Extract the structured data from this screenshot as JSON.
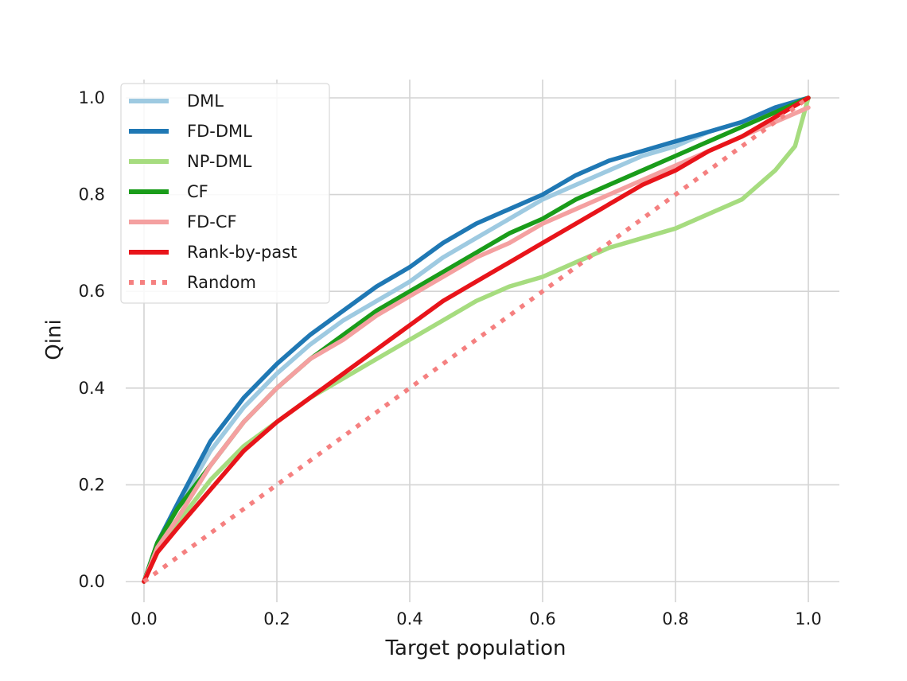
{
  "chart_data": {
    "type": "line",
    "title": "",
    "xlabel": "Target population",
    "ylabel": "Qini",
    "xlim": [
      0.0,
      1.0
    ],
    "ylim": [
      0.0,
      1.0
    ],
    "xticks": [
      "0.0",
      "0.2",
      "0.4",
      "0.6",
      "0.8",
      "1.0"
    ],
    "yticks": [
      "0.0",
      "0.2",
      "0.4",
      "0.6",
      "0.8",
      "1.0"
    ],
    "grid": true,
    "legend_position": "top-left",
    "series": [
      {
        "name": "DML",
        "color": "#9ecae1",
        "style": "solid",
        "x": [
          0,
          0.02,
          0.05,
          0.1,
          0.15,
          0.2,
          0.25,
          0.3,
          0.35,
          0.4,
          0.45,
          0.5,
          0.55,
          0.6,
          0.65,
          0.7,
          0.75,
          0.8,
          0.85,
          0.9,
          0.95,
          1.0
        ],
        "y": [
          0,
          0.08,
          0.15,
          0.27,
          0.36,
          0.43,
          0.49,
          0.54,
          0.58,
          0.62,
          0.67,
          0.71,
          0.75,
          0.79,
          0.82,
          0.85,
          0.88,
          0.9,
          0.93,
          0.95,
          0.98,
          1.0
        ]
      },
      {
        "name": "FD-DML",
        "color": "#1f78b4",
        "style": "solid",
        "x": [
          0,
          0.02,
          0.05,
          0.1,
          0.15,
          0.2,
          0.25,
          0.3,
          0.35,
          0.4,
          0.45,
          0.5,
          0.55,
          0.6,
          0.65,
          0.7,
          0.75,
          0.8,
          0.85,
          0.9,
          0.95,
          1.0
        ],
        "y": [
          0,
          0.08,
          0.16,
          0.29,
          0.38,
          0.45,
          0.51,
          0.56,
          0.61,
          0.65,
          0.7,
          0.74,
          0.77,
          0.8,
          0.84,
          0.87,
          0.89,
          0.91,
          0.93,
          0.95,
          0.98,
          1.0
        ]
      },
      {
        "name": "NP-DML",
        "color": "#a6dc7f",
        "style": "solid",
        "x": [
          0,
          0.02,
          0.05,
          0.1,
          0.15,
          0.2,
          0.25,
          0.3,
          0.35,
          0.4,
          0.45,
          0.5,
          0.55,
          0.6,
          0.65,
          0.7,
          0.75,
          0.8,
          0.85,
          0.9,
          0.95,
          0.98,
          1.0
        ],
        "y": [
          0,
          0.06,
          0.12,
          0.21,
          0.28,
          0.33,
          0.38,
          0.42,
          0.46,
          0.5,
          0.54,
          0.58,
          0.61,
          0.63,
          0.66,
          0.69,
          0.71,
          0.73,
          0.76,
          0.79,
          0.85,
          0.9,
          1.0
        ]
      },
      {
        "name": "CF",
        "color": "#1a9c1a",
        "style": "solid",
        "x": [
          0,
          0.02,
          0.05,
          0.1,
          0.15,
          0.2,
          0.25,
          0.3,
          0.35,
          0.4,
          0.45,
          0.5,
          0.55,
          0.6,
          0.65,
          0.7,
          0.75,
          0.8,
          0.85,
          0.9,
          0.95,
          1.0
        ],
        "y": [
          0,
          0.08,
          0.15,
          0.24,
          0.33,
          0.4,
          0.46,
          0.51,
          0.56,
          0.6,
          0.64,
          0.68,
          0.72,
          0.75,
          0.79,
          0.82,
          0.85,
          0.88,
          0.91,
          0.94,
          0.97,
          1.0
        ]
      },
      {
        "name": "FD-CF",
        "color": "#f4a0a0",
        "style": "solid",
        "x": [
          0,
          0.02,
          0.05,
          0.1,
          0.15,
          0.2,
          0.25,
          0.3,
          0.35,
          0.4,
          0.45,
          0.5,
          0.55,
          0.6,
          0.65,
          0.7,
          0.75,
          0.8,
          0.85,
          0.9,
          0.95,
          1.0
        ],
        "y": [
          0,
          0.07,
          0.13,
          0.24,
          0.33,
          0.4,
          0.46,
          0.5,
          0.55,
          0.59,
          0.63,
          0.67,
          0.7,
          0.74,
          0.77,
          0.8,
          0.83,
          0.86,
          0.89,
          0.92,
          0.95,
          0.98
        ]
      },
      {
        "name": "Rank-by-past",
        "color": "#e8141a",
        "style": "solid",
        "x": [
          0,
          0.02,
          0.05,
          0.1,
          0.15,
          0.2,
          0.25,
          0.3,
          0.35,
          0.4,
          0.45,
          0.5,
          0.55,
          0.6,
          0.65,
          0.7,
          0.75,
          0.8,
          0.85,
          0.9,
          0.95,
          1.0
        ],
        "y": [
          0,
          0.06,
          0.11,
          0.19,
          0.27,
          0.33,
          0.38,
          0.43,
          0.48,
          0.53,
          0.58,
          0.62,
          0.66,
          0.7,
          0.74,
          0.78,
          0.82,
          0.85,
          0.89,
          0.92,
          0.96,
          1.0
        ]
      },
      {
        "name": "Random",
        "color": "#f58080",
        "style": "dotted",
        "x": [
          0,
          1.0
        ],
        "y": [
          0,
          1.0
        ]
      }
    ]
  }
}
